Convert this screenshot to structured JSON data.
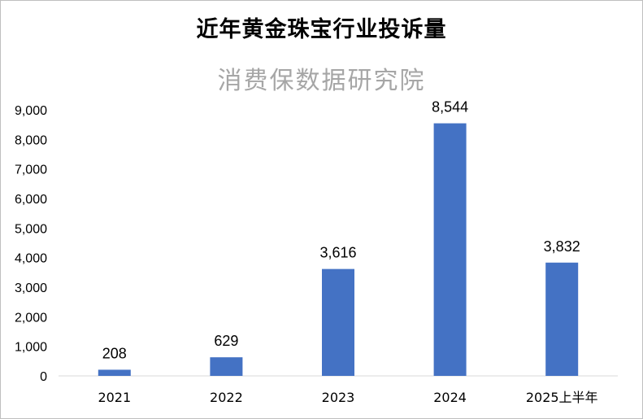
{
  "chart_data": {
    "type": "bar",
    "title": "近年黄金珠宝行业投诉量",
    "subtitle": "消费保数据研究院",
    "categories": [
      "2021",
      "2022",
      "2023",
      "2024",
      "2025上半年"
    ],
    "values": [
      208,
      629,
      3616,
      8544,
      3832
    ],
    "value_labels": [
      "208",
      "629",
      "3,616",
      "8,544",
      "3,832"
    ],
    "ylim": [
      0,
      9000
    ],
    "yticks": [
      0,
      1000,
      2000,
      3000,
      4000,
      5000,
      6000,
      7000,
      8000,
      9000
    ],
    "ytick_labels": [
      "0",
      "1,000",
      "2,000",
      "3,000",
      "4,000",
      "5,000",
      "6,000",
      "7,000",
      "8,000",
      "9,000"
    ],
    "grid": false,
    "legend": "none",
    "bar_color": "#4472c4"
  }
}
